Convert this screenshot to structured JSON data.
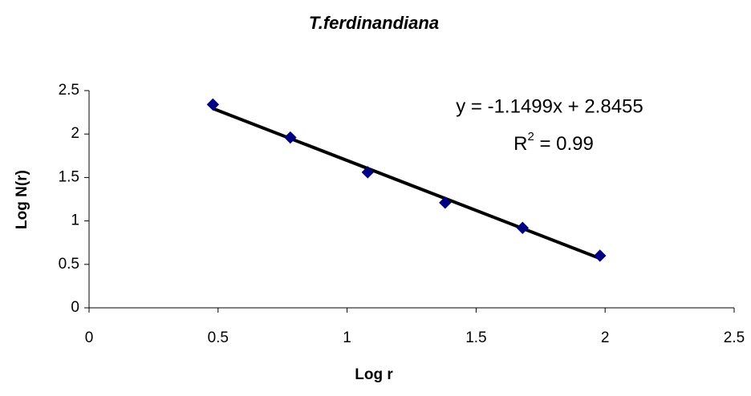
{
  "chart_data": {
    "type": "scatter",
    "title": "T.ferdinandiana",
    "x_label": "Log r",
    "y_label": "Log N(r)",
    "series": [
      {
        "name": "T.ferdinandiana",
        "color": "#000080",
        "x": [
          0.48,
          0.78,
          1.08,
          1.38,
          1.68,
          1.98
        ],
        "values": [
          2.34,
          1.96,
          1.56,
          1.21,
          0.92,
          0.6
        ]
      }
    ],
    "trendline": {
      "slope": -1.1499,
      "intercept": 2.8455,
      "color": "#000000",
      "equation": "y = -1.1499x + 2.8455",
      "r2_text": [
        "R",
        "2",
        " = 0.99"
      ]
    },
    "xlim": [
      0,
      2.5
    ],
    "xticks": [
      0,
      0.5,
      1,
      1.5,
      2,
      2.5
    ],
    "ylim": [
      0,
      2.5
    ],
    "yticks": [
      0,
      0.5,
      1,
      1.5,
      2,
      2.5
    ],
    "grid": false
  }
}
